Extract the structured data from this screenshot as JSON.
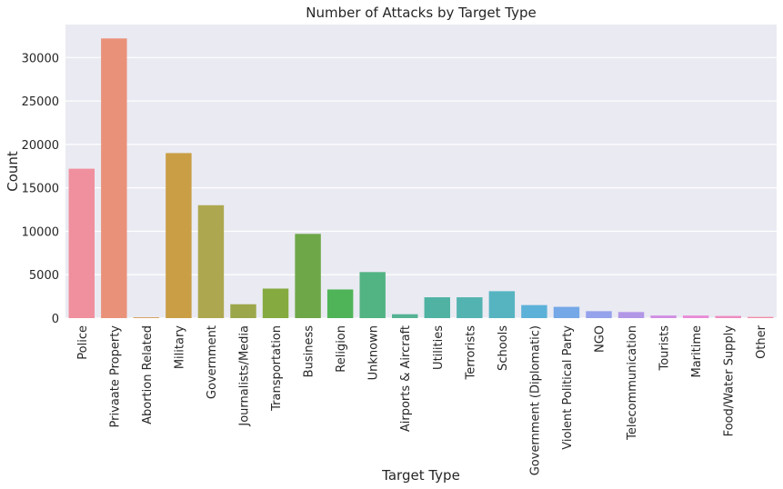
{
  "chart_data": {
    "type": "bar",
    "title": "Number of Attacks by Target Type",
    "xlabel": "Target Type",
    "ylabel": "Count",
    "ylim": [
      0,
      33800
    ],
    "yticks": [
      0,
      5000,
      10000,
      15000,
      20000,
      25000,
      30000
    ],
    "grid": true,
    "categories": [
      "Police",
      "Privaate Property",
      "Abortion Related",
      "Military",
      "Government",
      "Journalists/Media",
      "Transportation",
      "Business",
      "Religion",
      "Unknown",
      "Airports & Aircraft",
      "Utilities",
      "Terrorists",
      "Schools",
      "Government (Diplomatic)",
      "Violent Political Party",
      "NGO",
      "Telecommunication",
      "Tourists",
      "Maritime",
      "Food/Water Supply",
      "Other"
    ],
    "values": [
      17200,
      32200,
      100,
      19000,
      13000,
      1600,
      3400,
      9700,
      3300,
      5300,
      450,
      2400,
      2400,
      3100,
      1500,
      1300,
      800,
      700,
      300,
      300,
      250,
      140
    ],
    "colors": [
      "#f08f9d",
      "#ea917a",
      "#d4a05e",
      "#c99e45",
      "#ada84f",
      "#9ba74a",
      "#85aa3f",
      "#6ea748",
      "#4fb458",
      "#52b383",
      "#55b294",
      "#4fb2a2",
      "#53b3b0",
      "#56b4c1",
      "#5cb1d8",
      "#74a8e7",
      "#95a2ec",
      "#b297e6",
      "#d08ee2",
      "#e88bd7",
      "#ee8bbf",
      "#f18ca8"
    ]
  }
}
